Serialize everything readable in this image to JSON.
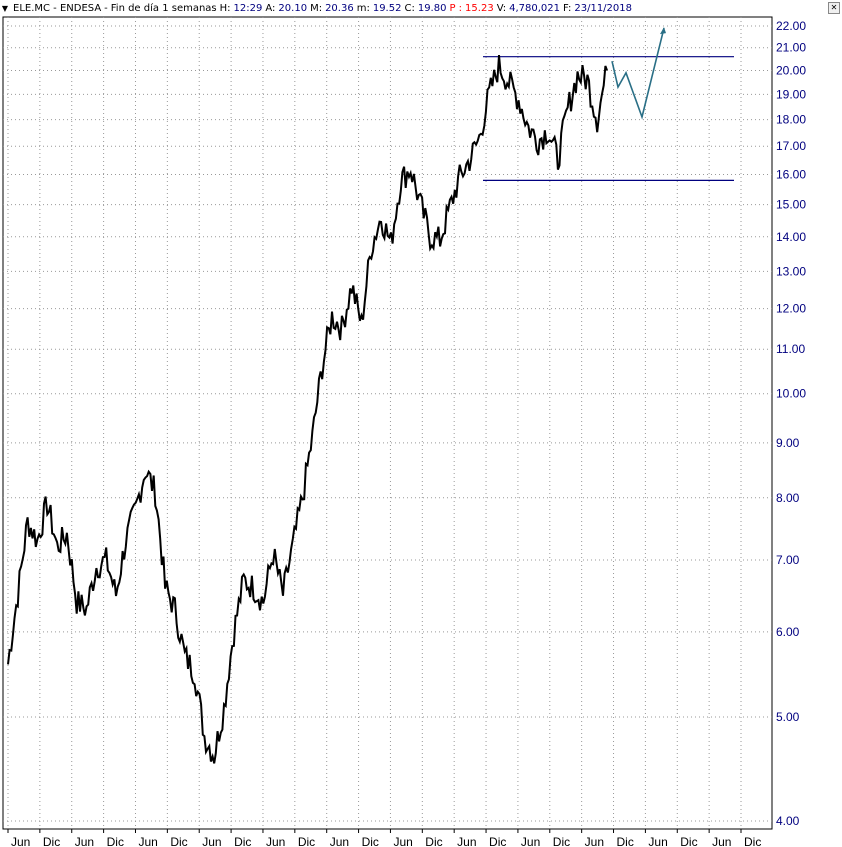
{
  "header": {
    "symbol": "ELE.MC - ENDESA",
    "period": "Fin de día 1 semanas",
    "h_label": "H:",
    "h_value": "12:29",
    "a_label": "A:",
    "a_value": "20.10",
    "m_label": "M:",
    "m_value": "20.36",
    "mi_label": "m:",
    "mi_value": "19.52",
    "c_label": "C:",
    "c_value": "19.80",
    "p_label": "P :",
    "p_value": "15.23",
    "v_label": "V:",
    "v_value": "4,780,021",
    "f_label": "F:",
    "f_value": "23/11/2018"
  },
  "colors": {
    "price": "#000000",
    "level": "#00007f",
    "projection": "#2a6f86",
    "axis_text": "#00007f"
  },
  "chart_data": {
    "type": "line",
    "scale": "log",
    "ylim": [
      4.0,
      22.0
    ],
    "ytick_labels": [
      "22.00",
      "21.00",
      "20.00",
      "19.00",
      "18.00",
      "17.00",
      "16.00",
      "15.00",
      "14.00",
      "13.00",
      "12.00",
      "11.00",
      "10.00",
      "9.00",
      "8.00",
      "7.00",
      "6.00",
      "5.00",
      "4.00"
    ],
    "xtick_labels": [
      "Jun",
      "Dic",
      "Jun",
      "Dic",
      "Jun",
      "Dic",
      "Jun",
      "Dic",
      "Jun",
      "Dic",
      "Jun",
      "Dic",
      "Jun",
      "Dic",
      "Jun",
      "Dic",
      "Jun",
      "Dic",
      "Jun",
      "Dic",
      "Jun",
      "Dic",
      "Jun",
      "Dic"
    ],
    "series": [
      {
        "values": [
          5.6,
          6.5,
          7.6,
          7.3,
          7.9,
          7.2,
          7.4,
          6.4,
          6.3,
          6.9,
          7.0,
          6.5,
          7.3,
          7.8,
          8.5,
          8.1,
          6.6,
          6.3,
          5.7,
          5.5,
          4.8,
          4.6,
          5.1,
          6.0,
          6.7,
          6.6,
          6.4,
          7.1,
          6.5,
          7.2,
          8.0,
          9.1,
          10.6,
          11.8,
          11.5,
          12.6,
          11.6,
          13.7,
          14.6,
          13.8,
          15.8,
          16.2,
          15.0,
          14.0,
          13.9,
          14.9,
          15.9,
          16.5,
          17.3,
          19.0,
          20.2,
          19.5,
          18.8,
          17.7,
          17.2,
          17.6,
          16.5,
          18.4,
          19.8,
          19.6,
          18.0,
          20.0
        ]
      }
    ],
    "levels": [
      20.6,
      15.8
    ],
    "projection": [
      20.4,
      19.3,
      19.9,
      18.1,
      21.9
    ]
  }
}
